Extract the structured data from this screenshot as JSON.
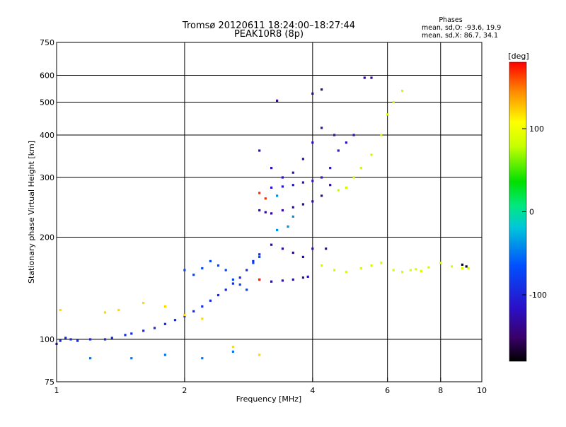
{
  "title_line1": "Tromsø 20120611 18:24:00–18:27:44",
  "title_line2": "PEAK10R8 (8p)",
  "phases": {
    "heading": "Phases",
    "line_o": "mean, sd,O: -93.6, 19.9",
    "line_x": "mean, sd,X:  86.7, 34.1"
  },
  "colors": {
    "background": "#ffffff",
    "grid": "#000000",
    "main_trace": "#2a60ff",
    "f_layer_trace": "#3018c8",
    "x_mode_points": "#e6ff00"
  },
  "chart_data": {
    "type": "scatter",
    "xlabel": "Frequency [MHz]",
    "ylabel": "Stationary phase Virtual Height [km]",
    "xscale": "log",
    "yscale": "log",
    "xlim": [
      1,
      10
    ],
    "ylim": [
      75,
      750
    ],
    "xticks": [
      1,
      2,
      4,
      6,
      8,
      10
    ],
    "yticks": [
      75,
      100,
      200,
      300,
      400,
      500,
      600,
      750
    ],
    "grid": true,
    "colorbar": {
      "label": "[deg]",
      "ticks": [
        100,
        0,
        -100
      ],
      "range": [
        -180,
        180
      ],
      "colormap": "rainbow (black/violet at -180 through blue, cyan, green, yellow to red at +180)"
    },
    "series": [
      {
        "color_value": -95,
        "points": [
          [
            1.0,
            97
          ],
          [
            1.02,
            99
          ],
          [
            1.05,
            101
          ],
          [
            1.08,
            100
          ],
          [
            1.12,
            99
          ],
          [
            1.2,
            100
          ],
          [
            1.3,
            100
          ],
          [
            1.35,
            101
          ],
          [
            1.45,
            103
          ],
          [
            1.5,
            104
          ],
          [
            1.6,
            106
          ],
          [
            1.7,
            108
          ],
          [
            1.8,
            111
          ],
          [
            1.9,
            114
          ],
          [
            2.0,
            117
          ],
          [
            2.1,
            121
          ],
          [
            2.2,
            125
          ],
          [
            2.3,
            130
          ],
          [
            2.4,
            135
          ],
          [
            2.5,
            140
          ],
          [
            2.6,
            146
          ],
          [
            2.7,
            152
          ],
          [
            2.8,
            160
          ],
          [
            2.9,
            170
          ],
          [
            3.0,
            178
          ]
        ]
      },
      {
        "color_value": -75,
        "points": [
          [
            2.0,
            160
          ],
          [
            2.1,
            155
          ],
          [
            2.2,
            162
          ],
          [
            2.3,
            170
          ],
          [
            2.4,
            165
          ],
          [
            2.5,
            160
          ],
          [
            2.6,
            150
          ],
          [
            2.7,
            145
          ],
          [
            2.8,
            140
          ],
          [
            2.9,
            168
          ],
          [
            3.0,
            175
          ]
        ]
      },
      {
        "color_value": -120,
        "points": [
          [
            3.0,
            150
          ],
          [
            3.2,
            148
          ],
          [
            3.4,
            149
          ],
          [
            3.6,
            150
          ],
          [
            3.8,
            152
          ],
          [
            3.9,
            153
          ]
        ]
      },
      {
        "color_value": -130,
        "points": [
          [
            3.0,
            240
          ],
          [
            3.1,
            237
          ],
          [
            3.2,
            235
          ],
          [
            3.4,
            240
          ],
          [
            3.6,
            245
          ],
          [
            3.8,
            250
          ],
          [
            4.0,
            255
          ],
          [
            4.2,
            265
          ],
          [
            4.4,
            285
          ]
        ]
      },
      {
        "color_value": -110,
        "points": [
          [
            3.2,
            280
          ],
          [
            3.4,
            282
          ],
          [
            3.6,
            285
          ],
          [
            3.8,
            290
          ],
          [
            4.0,
            293
          ],
          [
            4.2,
            300
          ],
          [
            4.4,
            320
          ],
          [
            4.6,
            360
          ]
        ]
      },
      {
        "color_value": -120,
        "points": [
          [
            3.0,
            360
          ],
          [
            3.2,
            320
          ],
          [
            3.4,
            300
          ],
          [
            3.6,
            310
          ],
          [
            3.8,
            340
          ],
          [
            4.0,
            380
          ],
          [
            4.2,
            420
          ],
          [
            4.5,
            400
          ],
          [
            4.8,
            380
          ],
          [
            5.0,
            400
          ]
        ]
      },
      {
        "color_value": -130,
        "points": [
          [
            3.2,
            190
          ],
          [
            3.4,
            185
          ],
          [
            3.6,
            180
          ],
          [
            3.8,
            175
          ],
          [
            4.0,
            185
          ],
          [
            4.3,
            185
          ]
        ]
      },
      {
        "color_value": 80,
        "points": [
          [
            4.6,
            275
          ],
          [
            4.8,
            280
          ],
          [
            5.0,
            300
          ],
          [
            5.2,
            320
          ],
          [
            5.5,
            350
          ],
          [
            5.8,
            400
          ],
          [
            6.0,
            460
          ],
          [
            6.2,
            500
          ],
          [
            6.5,
            540
          ]
        ]
      },
      {
        "color_value": 85,
        "points": [
          [
            4.2,
            165
          ],
          [
            4.5,
            160
          ],
          [
            4.8,
            158
          ],
          [
            5.2,
            162
          ],
          [
            5.5,
            165
          ],
          [
            5.8,
            168
          ],
          [
            6.2,
            160
          ],
          [
            6.5,
            158
          ],
          [
            6.8,
            160
          ],
          [
            7.0,
            161
          ],
          [
            7.2,
            159
          ],
          [
            7.5,
            163
          ],
          [
            8.0,
            168
          ],
          [
            8.5,
            164
          ],
          [
            9.0,
            162
          ],
          [
            9.3,
            162
          ]
        ]
      },
      {
        "color_value": -170,
        "points": [
          [
            9.0,
            166
          ],
          [
            9.2,
            164
          ]
        ]
      },
      {
        "color_value": 120,
        "points": [
          [
            1.02,
            122
          ],
          [
            1.3,
            120
          ],
          [
            1.4,
            122
          ],
          [
            1.6,
            128
          ],
          [
            1.8,
            125
          ],
          [
            2.0,
            118
          ],
          [
            2.2,
            115
          ],
          [
            2.6,
            95
          ],
          [
            3.0,
            90
          ]
        ]
      },
      {
        "color_value": -50,
        "points": [
          [
            1.2,
            88
          ],
          [
            1.5,
            88
          ],
          [
            1.8,
            90
          ],
          [
            2.2,
            88
          ],
          [
            2.6,
            92
          ]
        ]
      },
      {
        "color_value": 170,
        "points": [
          [
            3.0,
            270
          ],
          [
            3.1,
            260
          ],
          [
            3.0,
            150
          ]
        ]
      },
      {
        "color_value": -40,
        "points": [
          [
            3.3,
            210
          ],
          [
            3.5,
            215
          ],
          [
            3.6,
            230
          ],
          [
            3.3,
            265
          ]
        ]
      },
      {
        "color_value": -135,
        "points": [
          [
            3.3,
            505
          ],
          [
            4.0,
            530
          ],
          [
            4.2,
            545
          ],
          [
            5.3,
            590
          ],
          [
            5.5,
            590
          ]
        ]
      }
    ]
  }
}
